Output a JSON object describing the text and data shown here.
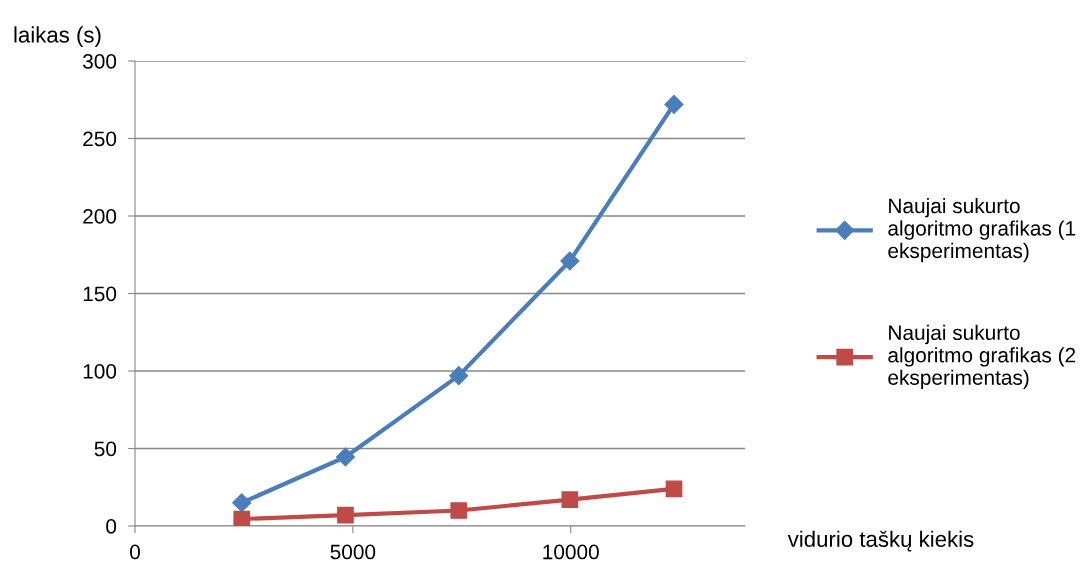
{
  "chart_data": {
    "type": "line",
    "xlabel": "vidurio taškų kiekis",
    "ylabel": "laikas (s)",
    "xlim": [
      0,
      14000
    ],
    "xticks": [
      0,
      5000,
      10000
    ],
    "ylim": [
      0,
      300
    ],
    "yticks": [
      0,
      50,
      100,
      150,
      200,
      250,
      300
    ],
    "grid": "y",
    "legend": "right",
    "line_style": "solid",
    "series": [
      {
        "name": "Naujai sukurto algoritmo grafikas (1 eksperimentas)",
        "color": "#4a7ebb",
        "marker": "diamond",
        "x": [
          2450,
          4830,
          7430,
          9980,
          12370
        ],
        "values": [
          15,
          44.5,
          97,
          171,
          272
        ]
      },
      {
        "name": "Naujai sukurto algoritmo grafikas (2 eksperimentas)",
        "color": "#be4b48",
        "marker": "square",
        "x": [
          2450,
          4830,
          7430,
          9980,
          12370
        ],
        "values": [
          4.5,
          7,
          10,
          17,
          24
        ]
      }
    ]
  }
}
